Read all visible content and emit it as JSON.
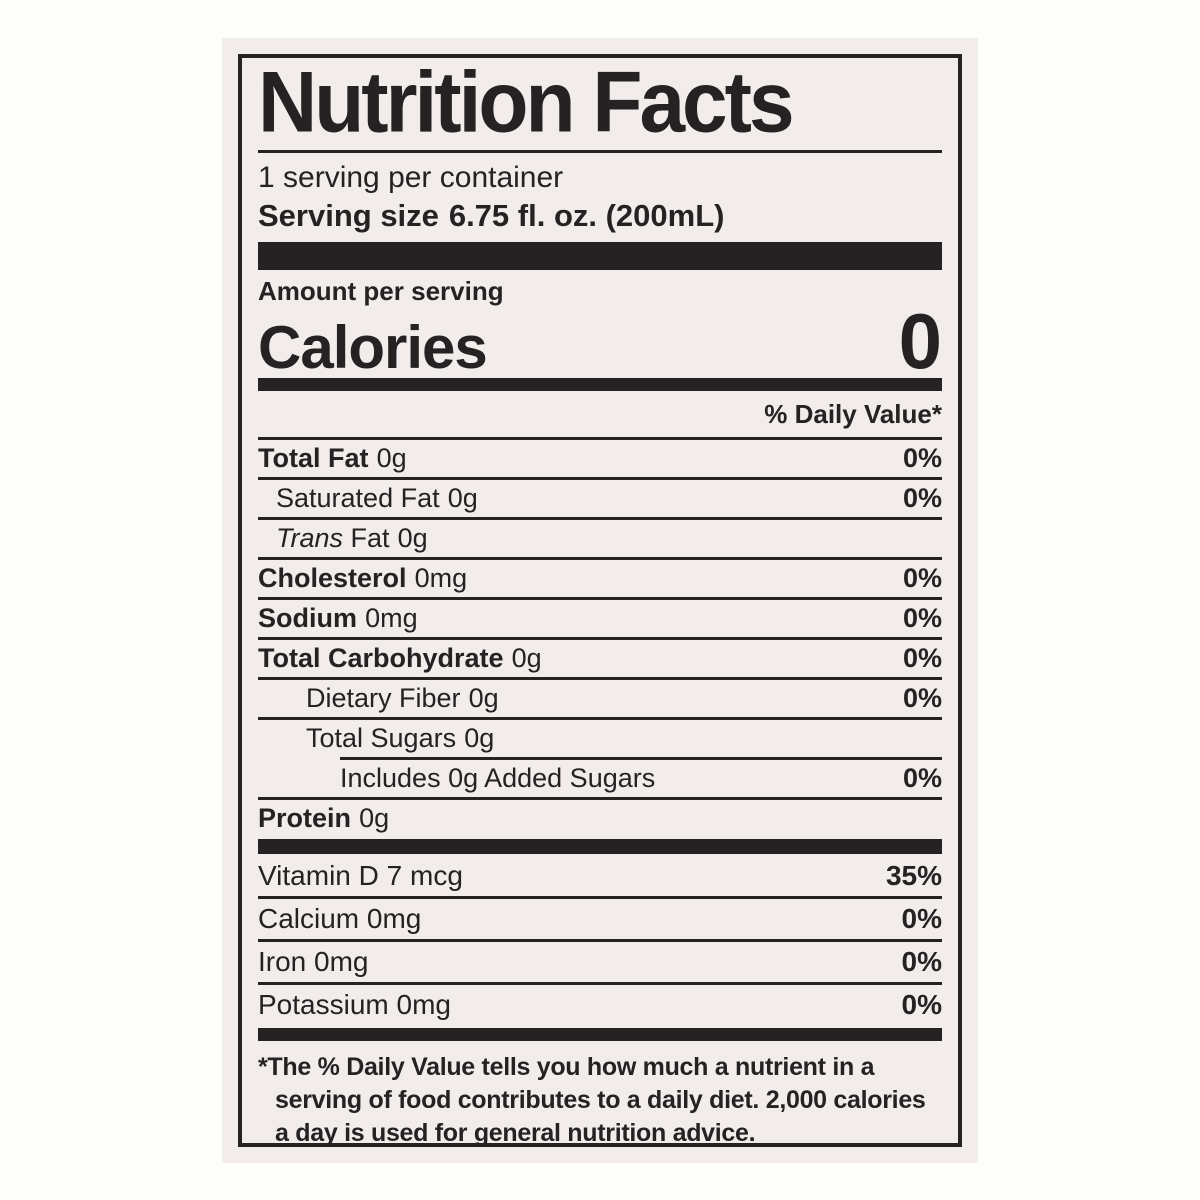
{
  "colors": {
    "paper": "#f2eceb",
    "ink": "#262223",
    "background": "#fdfdfc"
  },
  "label": {
    "title": "Nutrition Facts",
    "servings_per_container": "1 serving per container",
    "serving_size_label": "Serving size",
    "serving_size_value": "6.75 fl. oz. (200mL)",
    "amount_per_serving": "Amount per serving",
    "calories_label": "Calories",
    "calories_value": "0",
    "daily_value_header": "% Daily Value*",
    "nutrients": [
      {
        "name": "Total Fat",
        "amount": "0g",
        "dv": "0%"
      },
      {
        "name": "Saturated Fat",
        "amount": "0g",
        "dv": "0%"
      },
      {
        "name_italic": "Trans",
        "name": " Fat",
        "amount": "0g",
        "dv": ""
      },
      {
        "name": "Cholesterol",
        "amount": "0mg",
        "dv": "0%"
      },
      {
        "name": "Sodium",
        "amount": "0mg",
        "dv": "0%"
      },
      {
        "name": "Total Carbohydrate",
        "amount": "0g",
        "dv": "0%"
      },
      {
        "name": "Dietary Fiber",
        "amount": "0g",
        "dv": "0%"
      },
      {
        "name": "Total Sugars",
        "amount": "0g",
        "dv": ""
      },
      {
        "name": "Includes 0g Added Sugars",
        "amount": "",
        "dv": "0%"
      },
      {
        "name": "Protein",
        "amount": "0g",
        "dv": ""
      }
    ],
    "vitamins": [
      {
        "name": "Vitamin D 7 mcg",
        "dv": "35%"
      },
      {
        "name": "Calcium 0mg",
        "dv": "0%"
      },
      {
        "name": "Iron 0mg",
        "dv": "0%"
      },
      {
        "name": "Potassium 0mg",
        "dv": "0%"
      }
    ],
    "footnote_lines": [
      "*The % Daily Value tells you how much a nutrient in a",
      "serving of food contributes to a daily diet. 2,000 calories",
      "a day is used for general nutrition advice."
    ]
  }
}
